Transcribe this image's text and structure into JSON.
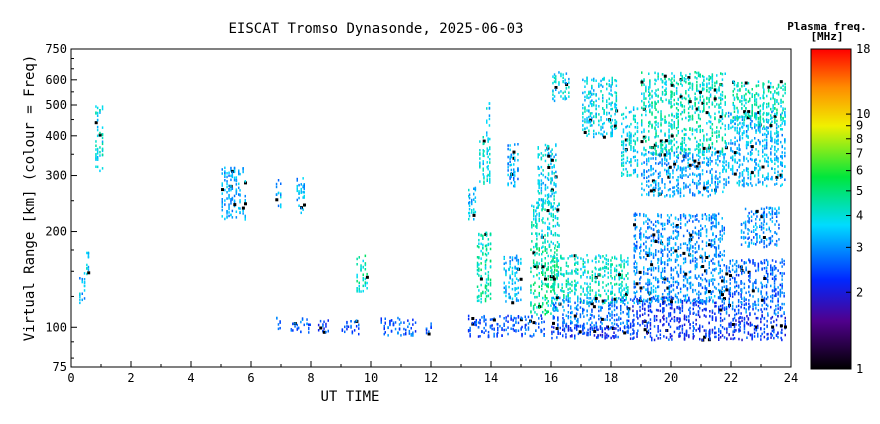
{
  "chart_data": {
    "type": "scatter",
    "title": "EISCAT Tromso Dynasonde, 2025-06-03",
    "xlabel": "UT TIME",
    "ylabel": "Virtual Range [km] (colour = Freq)",
    "xlim": [
      0,
      24
    ],
    "ylim": [
      75,
      750
    ],
    "yscale": "log",
    "grid": false,
    "x_ticks": [
      "0",
      "2",
      "4",
      "6",
      "8",
      "10",
      "12",
      "14",
      "16",
      "18",
      "20",
      "22",
      "24"
    ],
    "y_ticks": [
      {
        "value": 750,
        "label": "750"
      },
      {
        "value": 600,
        "label": "600"
      },
      {
        "value": 500,
        "label": "500"
      },
      {
        "value": 400,
        "label": "400"
      },
      {
        "value": 300,
        "label": "300"
      },
      {
        "value": 200,
        "label": "200"
      },
      {
        "value": 100,
        "label": "100"
      },
      {
        "value": 75,
        "label": "75"
      }
    ],
    "colorbar": {
      "title": "Plasma freq.",
      "unit": "[MHz]",
      "range": [
        1,
        18
      ],
      "scale": "log",
      "ticks": [
        "18",
        "10",
        "9",
        "8",
        "7",
        "6",
        "5",
        "4",
        "3",
        "2",
        "1"
      ],
      "tick_values": [
        18,
        10,
        9,
        8,
        7,
        6,
        5,
        4,
        3,
        2,
        1
      ]
    },
    "clusters": [
      {
        "t0": 0.25,
        "t1": 0.45,
        "r0": 120,
        "r1": 150,
        "f": 3.4
      },
      {
        "t0": 0.5,
        "t1": 0.6,
        "r0": 140,
        "r1": 175,
        "f": 3.6
      },
      {
        "t0": 0.8,
        "t1": 1.05,
        "r0": 310,
        "r1": 500,
        "f": 3.9
      },
      {
        "t0": 5.0,
        "t1": 5.8,
        "r0": 220,
        "r1": 320,
        "f": 3.2
      },
      {
        "t0": 6.8,
        "t1": 7.0,
        "r0": 230,
        "r1": 300,
        "f": 3.3
      },
      {
        "t0": 7.5,
        "t1": 7.8,
        "r0": 230,
        "r1": 300,
        "f": 3.3
      },
      {
        "t0": 6.8,
        "t1": 7.0,
        "r0": 97,
        "r1": 108,
        "f": 2.7
      },
      {
        "t0": 7.3,
        "t1": 8.0,
        "r0": 97,
        "r1": 108,
        "f": 2.7
      },
      {
        "t0": 8.2,
        "t1": 8.6,
        "r0": 96,
        "r1": 106,
        "f": 2.5
      },
      {
        "t0": 9.0,
        "t1": 9.6,
        "r0": 96,
        "r1": 106,
        "f": 2.6
      },
      {
        "t0": 9.5,
        "t1": 9.9,
        "r0": 130,
        "r1": 170,
        "f": 4.3
      },
      {
        "t0": 10.3,
        "t1": 11.5,
        "r0": 95,
        "r1": 108,
        "f": 2.6
      },
      {
        "t0": 11.8,
        "t1": 12.0,
        "r0": 95,
        "r1": 104,
        "f": 2.6
      },
      {
        "t0": 13.2,
        "t1": 15.8,
        "r0": 94,
        "r1": 110,
        "f": 2.5
      },
      {
        "t0": 13.2,
        "t1": 13.5,
        "r0": 220,
        "r1": 280,
        "f": 3.5
      },
      {
        "t0": 13.5,
        "t1": 14.0,
        "r0": 120,
        "r1": 200,
        "f": 4.4
      },
      {
        "t0": 13.6,
        "t1": 14.0,
        "r0": 280,
        "r1": 400,
        "f": 3.8
      },
      {
        "t0": 13.8,
        "t1": 13.95,
        "r0": 400,
        "r1": 520,
        "f": 3.6
      },
      {
        "t0": 14.4,
        "t1": 15.0,
        "r0": 120,
        "r1": 170,
        "f": 3.4
      },
      {
        "t0": 14.5,
        "t1": 14.9,
        "r0": 280,
        "r1": 380,
        "f": 3.2
      },
      {
        "t0": 15.3,
        "t1": 16.3,
        "r0": 180,
        "r1": 250,
        "f": 4.0
      },
      {
        "t0": 15.5,
        "t1": 16.2,
        "r0": 240,
        "r1": 380,
        "f": 3.7
      },
      {
        "t0": 15.3,
        "t1": 16.2,
        "r0": 110,
        "r1": 180,
        "f": 4.6
      },
      {
        "t0": 16.0,
        "t1": 16.6,
        "r0": 520,
        "r1": 640,
        "f": 3.7
      },
      {
        "t0": 16.0,
        "t1": 18.6,
        "r0": 120,
        "r1": 170,
        "f": 4.2
      },
      {
        "t0": 16.0,
        "t1": 18.6,
        "r0": 100,
        "r1": 125,
        "f": 2.8
      },
      {
        "t0": 16.0,
        "t1": 18.6,
        "r0": 93,
        "r1": 102,
        "f": 2.3
      },
      {
        "t0": 17.0,
        "t1": 18.2,
        "r0": 400,
        "r1": 620,
        "f": 3.8
      },
      {
        "t0": 18.3,
        "t1": 18.9,
        "r0": 300,
        "r1": 500,
        "f": 3.8
      },
      {
        "t0": 18.6,
        "t1": 21.8,
        "r0": 92,
        "r1": 125,
        "f": 2.3
      },
      {
        "t0": 18.7,
        "t1": 21.8,
        "r0": 120,
        "r1": 230,
        "f": 3.0
      },
      {
        "t0": 19.0,
        "t1": 21.8,
        "r0": 350,
        "r1": 640,
        "f": 4.2
      },
      {
        "t0": 19.0,
        "t1": 21.8,
        "r0": 260,
        "r1": 360,
        "f": 3.2
      },
      {
        "t0": 21.8,
        "t1": 23.8,
        "r0": 92,
        "r1": 110,
        "f": 2.3
      },
      {
        "t0": 21.8,
        "t1": 23.8,
        "r0": 110,
        "r1": 165,
        "f": 2.7
      },
      {
        "t0": 21.8,
        "t1": 23.8,
        "r0": 280,
        "r1": 480,
        "f": 3.4
      },
      {
        "t0": 22.0,
        "t1": 23.8,
        "r0": 430,
        "r1": 600,
        "f": 4.3
      },
      {
        "t0": 22.3,
        "t1": 23.6,
        "r0": 180,
        "r1": 240,
        "f": 3.0
      }
    ]
  }
}
